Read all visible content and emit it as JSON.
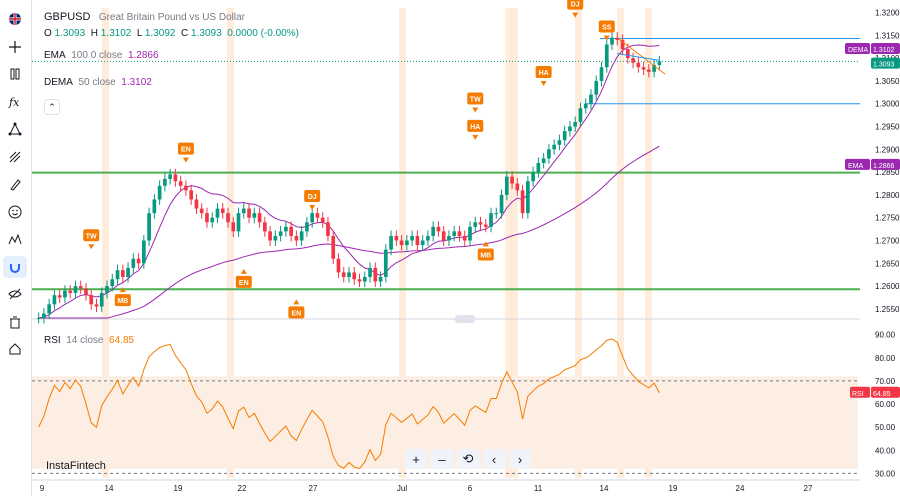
{
  "symbol": "GBPUSD",
  "symbol_desc": "Great Britain Pound vs US Dollar",
  "ohlc": {
    "o_label": "O",
    "o": "1.3093",
    "h_label": "H",
    "h": "1.3102",
    "l_label": "L",
    "l": "1.3092",
    "c_label": "C",
    "c": "1.3093",
    "change": "0.0000 (-0.00%)"
  },
  "ema_legend": {
    "name": "EMA",
    "params": "100 0 close",
    "value": "1.2866"
  },
  "dema_legend": {
    "name": "DEMA",
    "params": "50 close",
    "value": "1.3102"
  },
  "rsi_legend": {
    "name": "RSI",
    "params": "14 close",
    "value": "64.85"
  },
  "brand": "InstaFintech",
  "colors": {
    "up": "#089981",
    "down": "#f23645",
    "ema": "#9c27b0",
    "rsi": "#f57c00",
    "support": "#4caf50",
    "tag": "#f57c00"
  },
  "toolbar_icons": [
    "flag-icon",
    "crosshair-icon",
    "text-icon",
    "measure-icon",
    "fx-icon",
    "nodes-icon",
    "ruler-icon",
    "brush-icon",
    "smile-icon",
    "zigzag-icon",
    "magnet-icon",
    "eye-off-icon",
    "trash-icon",
    "home-icon"
  ],
  "zoom_buttons": [
    "+",
    "–",
    "⟲",
    "‹",
    "›"
  ],
  "price_axis": {
    "labels": [
      "1.3200",
      "1.3150",
      "1.3100",
      "1.3050",
      "1.3000",
      "1.2950",
      "1.2900",
      "1.2850",
      "1.2800",
      "1.2750",
      "1.2700",
      "1.2650",
      "1.2600",
      "1.2550"
    ],
    "badges": [
      {
        "name": "DEMA",
        "value": "1.3102"
      },
      {
        "name": "",
        "value": "1.3093"
      },
      {
        "name": "EMA",
        "value": "1.2866"
      }
    ]
  },
  "rsi_axis": {
    "labels": [
      "90.00",
      "80.00",
      "70.00",
      "60.00",
      "50.00",
      "40.00",
      "30.00"
    ],
    "badge": {
      "name": "RSI",
      "value": "64.85"
    }
  },
  "time_axis": [
    "9",
    "14",
    "19",
    "22",
    "27",
    "Jul",
    "6",
    "11",
    "14",
    "19",
    "24",
    "27"
  ],
  "chart_data": {
    "type": "candlestick",
    "symbol": "GBPUSD",
    "ylim": [
      1.253,
      1.321
    ],
    "horizontal_levels": [
      1.2849,
      1.2593,
      1.3143,
      1.3
    ],
    "closes": [
      1.253,
      1.254,
      1.256,
      1.258,
      1.2575,
      1.259,
      1.2585,
      1.26,
      1.2595,
      1.258,
      1.256,
      1.2555,
      1.2585,
      1.26,
      1.2615,
      1.2635,
      1.262,
      1.264,
      1.266,
      1.265,
      1.27,
      1.276,
      1.279,
      1.282,
      1.2835,
      1.2845,
      1.283,
      1.282,
      1.281,
      1.279,
      1.277,
      1.276,
      1.274,
      1.275,
      1.277,
      1.276,
      1.274,
      1.272,
      1.276,
      1.277,
      1.275,
      1.276,
      1.274,
      1.272,
      1.27,
      1.271,
      1.272,
      1.273,
      1.271,
      1.27,
      1.272,
      1.274,
      1.276,
      1.275,
      1.274,
      1.271,
      1.266,
      1.263,
      1.262,
      1.263,
      1.2615,
      1.261,
      1.262,
      1.264,
      1.261,
      1.262,
      1.268,
      1.271,
      1.27,
      1.269,
      1.27,
      1.271,
      1.269,
      1.27,
      1.271,
      1.273,
      1.272,
      1.27,
      1.271,
      1.272,
      1.271,
      1.27,
      1.273,
      1.274,
      1.2735,
      1.273,
      1.276,
      1.276,
      1.28,
      1.284,
      1.2825,
      1.281,
      1.276,
      1.283,
      1.285,
      1.287,
      1.288,
      1.29,
      1.291,
      1.292,
      1.294,
      1.295,
      1.296,
      1.299,
      1.3,
      1.302,
      1.305,
      1.308,
      1.313,
      1.3145,
      1.314,
      1.312,
      1.31,
      1.309,
      1.308,
      1.3075,
      1.307,
      1.3085,
      1.3093
    ],
    "ema_100": {
      "start": 1.25,
      "end": 1.2866
    },
    "dema_50": {
      "end": 1.3102
    },
    "rsi_14": {
      "last": 64.85,
      "levels": [
        70,
        30
      ]
    },
    "signals": [
      {
        "label": "TW",
        "dir": "down",
        "index": 10,
        "price": 1.2672
      },
      {
        "label": "MB",
        "dir": "up",
        "index": 16,
        "price": 1.26
      },
      {
        "label": "EN",
        "dir": "down",
        "index": 28,
        "price": 1.2862
      },
      {
        "label": "EN",
        "dir": "up",
        "index": 39,
        "price": 1.264
      },
      {
        "label": "DJ",
        "dir": "down",
        "index": 52,
        "price": 1.2758
      },
      {
        "label": "EN",
        "dir": "up",
        "index": 49,
        "price": 1.2573
      },
      {
        "label": "TW",
        "dir": "down",
        "index": 83,
        "price": 1.2972
      },
      {
        "label": "HA",
        "dir": "down",
        "index": 83,
        "price": 1.2912
      },
      {
        "label": "MB",
        "dir": "up",
        "index": 85,
        "price": 1.27
      },
      {
        "label": "HA",
        "dir": "down",
        "index": 96,
        "price": 1.303
      },
      {
        "label": "DJ",
        "dir": "down",
        "index": 102,
        "price": 1.318
      },
      {
        "label": "SS",
        "dir": "down",
        "index": 108,
        "price": 1.313
      }
    ]
  }
}
